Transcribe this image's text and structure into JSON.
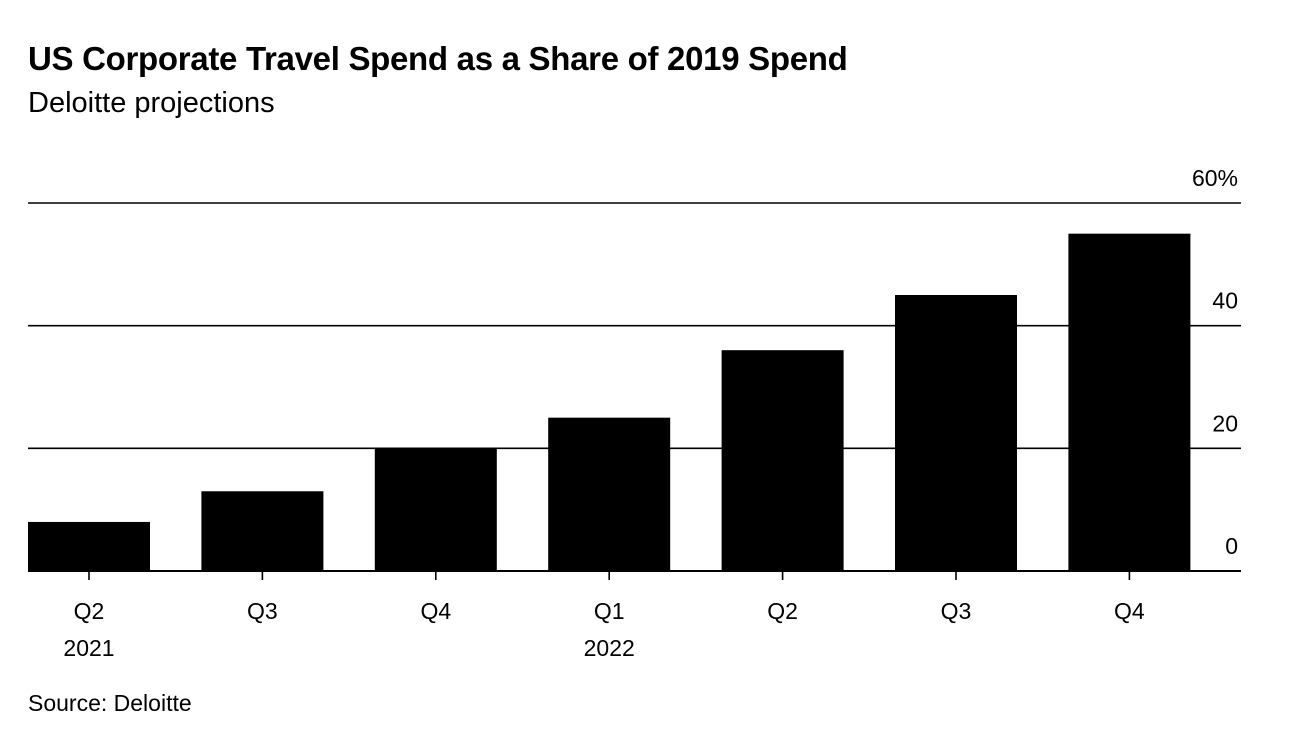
{
  "colors": {
    "bar": "#000000",
    "gridline": "#000000",
    "background": "#ffffff"
  },
  "chart_data": {
    "type": "bar",
    "title": "US Corporate Travel Spend as a Share of 2019 Spend",
    "subtitle": "Deloitte projections",
    "source": "Source: Deloitte",
    "categories": [
      "Q2",
      "Q3",
      "Q4",
      "Q1",
      "Q2",
      "Q3",
      "Q4"
    ],
    "category_years": [
      "2021",
      "",
      "",
      "2022",
      "",
      "",
      ""
    ],
    "values": [
      8,
      13,
      20,
      25,
      36,
      45,
      55
    ],
    "series": [
      {
        "name": "US corporate travel spend, % of 2019",
        "values": [
          8,
          13,
          20,
          25,
          36,
          45,
          55
        ]
      }
    ],
    "xlabel": "",
    "ylabel": "",
    "ylim": [
      0,
      60
    ],
    "yticks": [
      0,
      20,
      40,
      60
    ],
    "ytick_labels": [
      "0",
      "20",
      "40",
      "60%"
    ],
    "ytick_side": "right",
    "grid": true
  }
}
